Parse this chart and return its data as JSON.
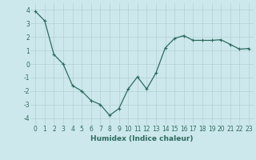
{
  "x": [
    0,
    1,
    2,
    3,
    4,
    5,
    6,
    7,
    8,
    9,
    10,
    11,
    12,
    13,
    14,
    15,
    16,
    17,
    18,
    19,
    20,
    21,
    22,
    23
  ],
  "y": [
    3.9,
    3.2,
    0.7,
    0.0,
    -1.6,
    -2.0,
    -2.7,
    -3.0,
    -3.8,
    -3.3,
    -1.85,
    -0.95,
    -1.85,
    -0.65,
    1.2,
    1.9,
    2.1,
    1.75,
    1.75,
    1.75,
    1.8,
    1.45,
    1.1,
    1.15
  ],
  "line_color": "#2d6b5e",
  "marker": "+",
  "marker_size": 3,
  "marker_linewidth": 0.8,
  "bg_color": "#cce8ec",
  "grid_color": "#b5d0d5",
  "xlabel": "Humidex (Indice chaleur)",
  "ylim": [
    -4.5,
    4.5
  ],
  "xlim": [
    -0.5,
    23.5
  ],
  "yticks": [
    -4,
    -3,
    -2,
    -1,
    0,
    1,
    2,
    3,
    4
  ],
  "xticks": [
    0,
    1,
    2,
    3,
    4,
    5,
    6,
    7,
    8,
    9,
    10,
    11,
    12,
    13,
    14,
    15,
    16,
    17,
    18,
    19,
    20,
    21,
    22,
    23
  ],
  "label_fontsize": 6.5,
  "tick_fontsize": 5.5
}
